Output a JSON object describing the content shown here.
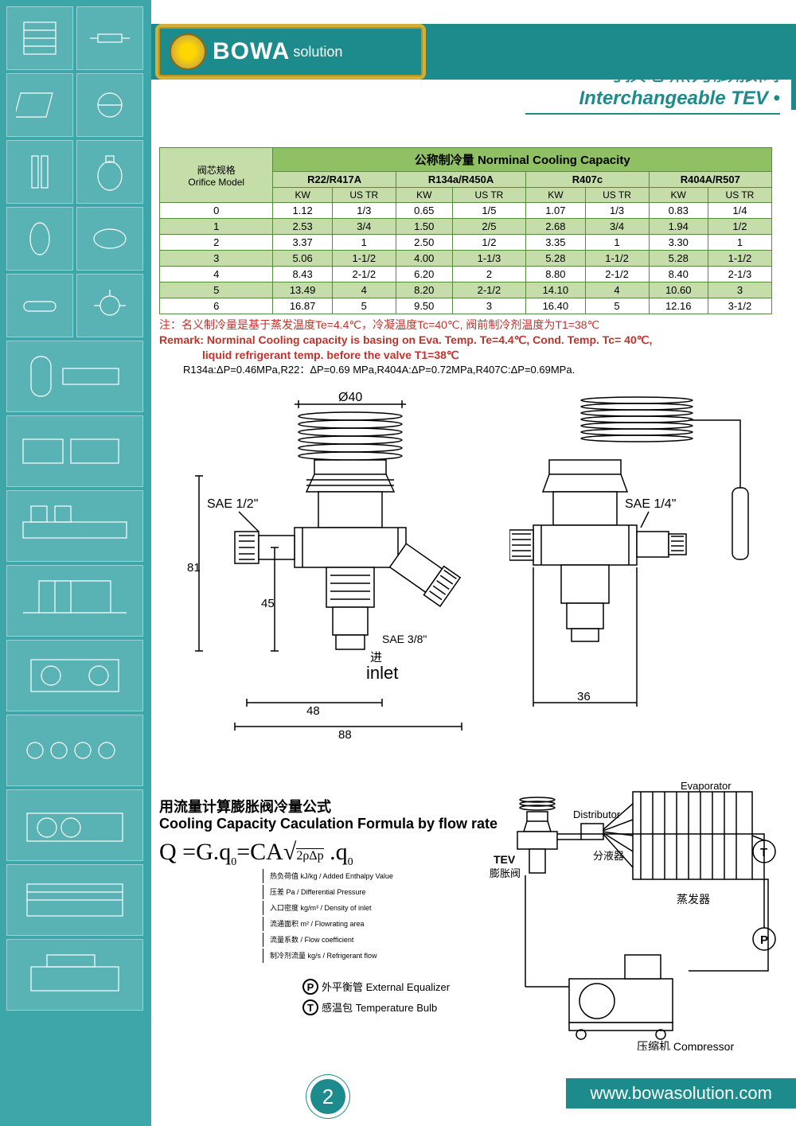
{
  "logo": {
    "brand": "BOWA",
    "sub": "solution"
  },
  "header": {
    "title_zh": "可换芯热力膨胀阀",
    "title_en": "Interchangeable TEV"
  },
  "table": {
    "corner_zh": "阀芯规格",
    "corner_en": "Orifice Model",
    "main_header_zh": "公称制冷量",
    "main_header_en": "Norminal Cooling Capacity",
    "refrigerants": [
      "R22/R417A",
      "R134a/R450A",
      "R407c",
      "R404A/R507"
    ],
    "units": [
      "KW",
      "US TR"
    ],
    "rows": [
      {
        "model": "0",
        "vals": [
          "1.12",
          "1/3",
          "0.65",
          "1/5",
          "1.07",
          "1/3",
          "0.83",
          "1/4"
        ]
      },
      {
        "model": "1",
        "vals": [
          "2.53",
          "3/4",
          "1.50",
          "2/5",
          "2.68",
          "3/4",
          "1.94",
          "1/2"
        ]
      },
      {
        "model": "2",
        "vals": [
          "3.37",
          "1",
          "2.50",
          "1/2",
          "3.35",
          "1",
          "3.30",
          "1"
        ]
      },
      {
        "model": "3",
        "vals": [
          "5.06",
          "1-1/2",
          "4.00",
          "1-1/3",
          "5.28",
          "1-1/2",
          "5.28",
          "1-1/2"
        ]
      },
      {
        "model": "4",
        "vals": [
          "8.43",
          "2-1/2",
          "6.20",
          "2",
          "8.80",
          "2-1/2",
          "8.40",
          "2-1/3"
        ]
      },
      {
        "model": "5",
        "vals": [
          "13.49",
          "4",
          "8.20",
          "2-1/2",
          "14.10",
          "4",
          "10.60",
          "3"
        ]
      },
      {
        "model": "6",
        "vals": [
          "16.87",
          "5",
          "9.50",
          "3",
          "16.40",
          "5",
          "12.16",
          "3-1/2"
        ]
      }
    ],
    "colors": {
      "header_bg": "#8fc063",
      "sub_bg": "#c5dda8",
      "border": "#578a3f",
      "alt_row": "#c5dda8"
    }
  },
  "notes": {
    "zh": "注：名义制冷量是基于蒸发温度Te=4.4℃，冷凝温度Tc=40℃, 阀前制冷剂温度为T1=38℃",
    "en1": "Remark: Norminal Cooling capacity is basing on Eva. Temp. Te=4.4℃, Cond. Temp. Tc= 40℃,",
    "en2": "liquid refrigerant temp. before the valve T1=38℃",
    "dp": "R134a:ΔP=0.46MPa,R22：ΔP=0.69 MPa,R404A:ΔP=0.72MPa,R407C:ΔP=0.69MPa."
  },
  "diagram": {
    "dims": {
      "d40": "Ø40",
      "sae12": "SAE 1/2\"",
      "sae14": "SAE 1/4\"",
      "sae38": "SAE 3/8\"",
      "h81": "81",
      "h45": "45",
      "w48": "48",
      "w88": "88",
      "w36": "36",
      "inlet_zh": "进",
      "inlet_en": "inlet"
    }
  },
  "formula": {
    "title_zh": "用流量计算膨胀阀冷量公式",
    "title_en": "Cooling Capacity Caculation Formula by flow rate",
    "eq": "Q =G.q₀=CA√2ρΔp .q₀",
    "legend": [
      "热负荷值 kJ/kg / Added Enthalpy Value",
      "压差 Pa / Differential Pressure",
      "入口密度 kg/m³ / Density of inlet",
      "流通面积 m² / Flowrating area",
      "流量系数 / Flow coefficient",
      "制冷剂流量 kg/s / Refrigerant flow"
    ]
  },
  "system": {
    "evap": "Evaporator",
    "evap_zh": "蒸发器",
    "dist": "Distributor",
    "dist_zh": "分液器",
    "tev": "TEV",
    "tev_zh": "膨胀阀",
    "comp": "Compressor",
    "comp_zh": "压缩机",
    "p_label": "外平衡管 External Equalizer",
    "t_label": "感温包 Temperature Bulb",
    "p": "P",
    "t": "T"
  },
  "footer": {
    "page": "2",
    "url": "www.bowasolution.com"
  },
  "colors": {
    "teal": "#1d8a8c",
    "sidebar": "#3da6a8",
    "gold": "#d4af37",
    "red": "#c0332b"
  }
}
